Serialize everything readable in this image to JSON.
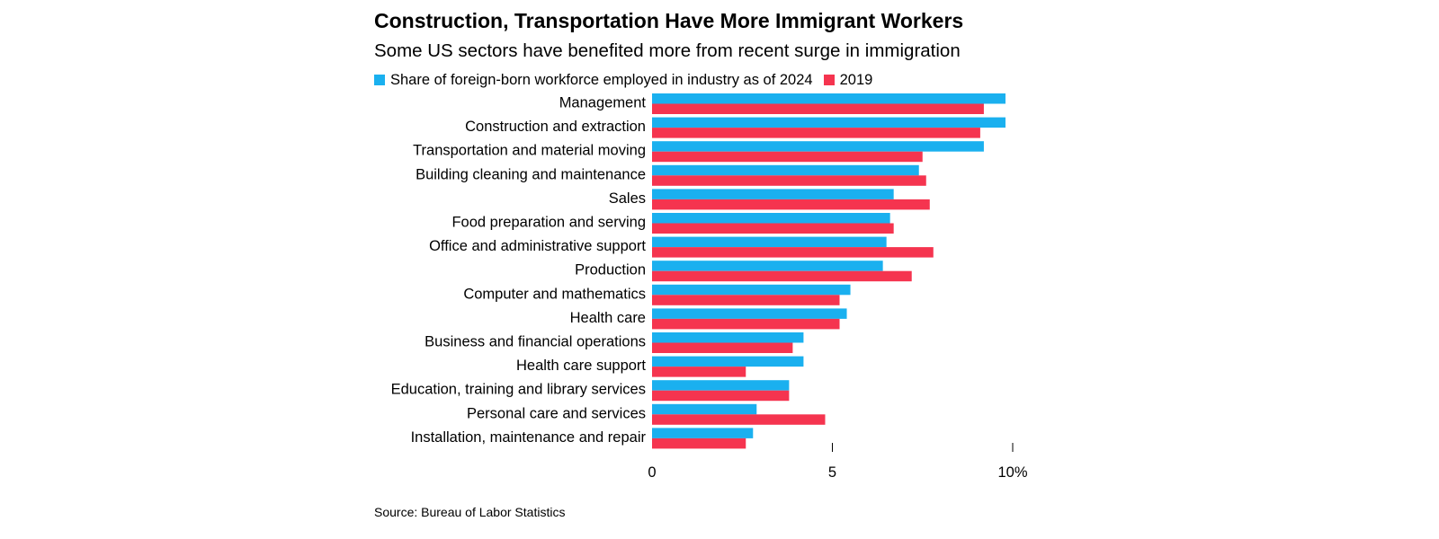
{
  "colors": {
    "series_2024": "#1ab0ef",
    "series_2019": "#f5344f",
    "tick": "#000000"
  },
  "chart_data": {
    "type": "bar",
    "orientation": "horizontal",
    "title": "Construction, Transportation Have More Immigrant Workers",
    "subtitle": "Some US sectors have benefited more from recent surge in immigration",
    "source": "Source: Bureau of Labor Statistics",
    "legend_placement": "top-left",
    "grid": false,
    "xlim": [
      0,
      10
    ],
    "x_ticks": [
      {
        "value": 0,
        "label": "0"
      },
      {
        "value": 5,
        "label": "5"
      },
      {
        "value": 10,
        "label": "10%"
      }
    ],
    "categories": [
      "Management",
      "Construction and extraction",
      "Transportation and material moving",
      "Building cleaning and maintenance",
      "Sales",
      "Food preparation and serving",
      "Office and administrative support",
      "Production",
      "Computer and mathematics",
      "Health care",
      "Business and financial operations",
      "Health care support",
      "Education, training and library services",
      "Personal care and services",
      "Installation, maintenance and repair"
    ],
    "series": [
      {
        "name": "Share of foreign-born workforce employed in industry as of 2024",
        "values": [
          9.8,
          9.8,
          9.2,
          7.4,
          6.7,
          6.6,
          6.5,
          6.4,
          5.5,
          5.4,
          4.2,
          4.2,
          3.8,
          2.9,
          2.8
        ]
      },
      {
        "name": "2019",
        "values": [
          9.2,
          9.1,
          7.5,
          7.6,
          7.7,
          6.7,
          7.8,
          7.2,
          5.2,
          5.2,
          3.9,
          2.6,
          3.8,
          4.8,
          2.6
        ]
      }
    ]
  }
}
